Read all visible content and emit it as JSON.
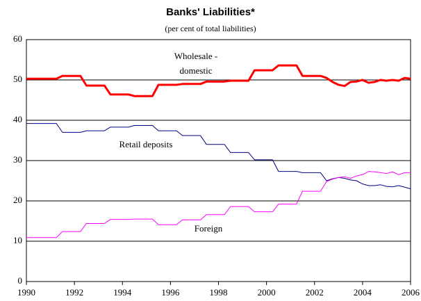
{
  "chart_data": {
    "type": "line",
    "title": "Banks' Liabilities*",
    "subtitle": "(per cent of total liabilities)",
    "x": [
      1990,
      1990.25,
      1990.5,
      1990.75,
      1991,
      1991.25,
      1991.5,
      1991.75,
      1992,
      1992.25,
      1992.5,
      1992.75,
      1993,
      1993.25,
      1993.5,
      1993.75,
      1994,
      1994.25,
      1994.5,
      1994.75,
      1995,
      1995.25,
      1995.5,
      1995.75,
      1996,
      1996.25,
      1996.5,
      1996.75,
      1997,
      1997.25,
      1997.5,
      1997.75,
      1998,
      1998.25,
      1998.5,
      1998.75,
      1999,
      1999.25,
      1999.5,
      1999.75,
      2000,
      2000.25,
      2000.5,
      2000.75,
      2001,
      2001.25,
      2001.5,
      2001.75,
      2002,
      2002.25,
      2002.5,
      2002.75,
      2003,
      2003.25,
      2003.5,
      2003.75,
      2004,
      2004.25,
      2004.5,
      2004.75,
      2005,
      2005.25,
      2005.5,
      2005.75,
      2006
    ],
    "series": [
      {
        "name": "Wholesale - domestic",
        "color": "#ff0000",
        "line_width": 3,
        "values": [
          50.3,
          50.3,
          50.3,
          50.3,
          50.3,
          50.3,
          51,
          51,
          51,
          51,
          48.6,
          48.6,
          48.6,
          48.6,
          46.4,
          46.4,
          46.4,
          46.4,
          46,
          46,
          46,
          46,
          48.8,
          48.8,
          48.8,
          48.8,
          49,
          49,
          49,
          49,
          49.6,
          49.6,
          49.6,
          49.6,
          49.8,
          49.8,
          49.8,
          49.8,
          52.4,
          52.4,
          52.4,
          52.4,
          53.6,
          53.6,
          53.6,
          53.6,
          51,
          51,
          51,
          51,
          50.5,
          49.5,
          48.8,
          48.5,
          49.5,
          49.6,
          50,
          49.3,
          49.5,
          50,
          49.8,
          50,
          49.8,
          50.5,
          50.3
        ]
      },
      {
        "name": "Retail deposits",
        "color": "#000080",
        "line_width": 1,
        "values": [
          39.2,
          39.2,
          39.2,
          39.2,
          39.2,
          39.2,
          37,
          37,
          37,
          37,
          37.4,
          37.4,
          37.4,
          37.4,
          38.3,
          38.3,
          38.3,
          38.3,
          38.7,
          38.7,
          38.7,
          38.7,
          37.4,
          37.4,
          37.4,
          37.4,
          36.2,
          36.2,
          36.2,
          36.2,
          34,
          34,
          34,
          34,
          32,
          32,
          32,
          32,
          30.2,
          30.2,
          30.2,
          30.2,
          27.3,
          27.3,
          27.3,
          27.3,
          27,
          27,
          27,
          27,
          25,
          25.5,
          25.8,
          25.6,
          25.2,
          25,
          24.2,
          23.8,
          23.8,
          24,
          23.6,
          23.5,
          23.8,
          23.4,
          23
        ]
      },
      {
        "name": "Foreign",
        "color": "#ff00ff",
        "line_width": 1,
        "values": [
          10.9,
          10.9,
          10.9,
          10.9,
          10.9,
          10.9,
          12.4,
          12.4,
          12.4,
          12.4,
          14.4,
          14.4,
          14.4,
          14.4,
          15.4,
          15.4,
          15.4,
          15.4,
          15.5,
          15.5,
          15.5,
          15.5,
          14.1,
          14.1,
          14.1,
          14.1,
          15.3,
          15.3,
          15.3,
          15.3,
          16.6,
          16.6,
          16.6,
          16.6,
          18.6,
          18.6,
          18.6,
          18.6,
          17.3,
          17.3,
          17.3,
          17.3,
          19.2,
          19.2,
          19.2,
          19.2,
          22.4,
          22.4,
          22.4,
          22.4,
          24.8,
          25.4,
          25.8,
          26,
          25.6,
          26.2,
          26.5,
          27.3,
          27.2,
          27,
          26.8,
          27.2,
          26.5,
          27,
          27
        ]
      }
    ],
    "xlim": [
      1990,
      2006
    ],
    "xticks": [
      1990,
      1992,
      1994,
      1996,
      1998,
      2000,
      2002,
      2004,
      2006
    ],
    "ylim": [
      0,
      60
    ],
    "yticks": [
      0,
      10,
      20,
      30,
      40,
      50,
      60
    ],
    "grid": true
  }
}
